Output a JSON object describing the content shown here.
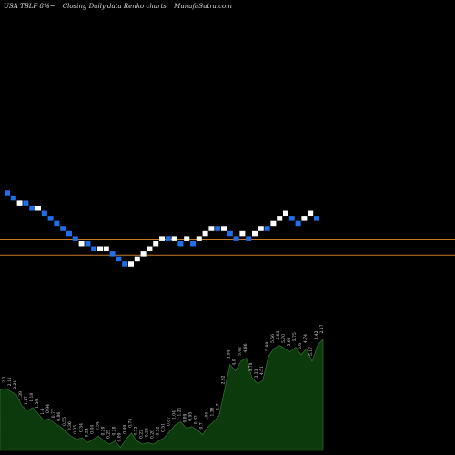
{
  "header": {
    "ticker": "USA TBLF 8%~",
    "chart_kind": "Closing Daily data  Renko  charts",
    "site": "MunafaSutra.com"
  },
  "colors": {
    "up_brick": "#ffffff",
    "down_brick": "#1e6fe8",
    "hline": "#c87a2a",
    "volume_fill": "#0d3a0d",
    "volume_stroke": "#3a7a3a",
    "background": "#000000"
  },
  "chart_data": {
    "type": "renko",
    "hlines": [
      21.35,
      20.75
    ],
    "bricks": [
      {
        "dir": "down",
        "value": 23.2
      },
      {
        "dir": "down",
        "value": 23.0
      },
      {
        "dir": "up",
        "value": 22.8
      },
      {
        "dir": "down",
        "value": 22.8
      },
      {
        "dir": "down",
        "value": 22.6
      },
      {
        "dir": "up",
        "value": 22.6
      },
      {
        "dir": "down",
        "value": 22.4
      },
      {
        "dir": "down",
        "value": 22.2
      },
      {
        "dir": "down",
        "value": 22.0
      },
      {
        "dir": "down",
        "value": 21.8
      },
      {
        "dir": "down",
        "value": 21.6
      },
      {
        "dir": "down",
        "value": 21.4
      },
      {
        "dir": "up",
        "value": 21.2
      },
      {
        "dir": "down",
        "value": 21.2
      },
      {
        "dir": "down",
        "value": 21.0
      },
      {
        "dir": "up",
        "value": 21.0
      },
      {
        "dir": "up",
        "value": 21.0
      },
      {
        "dir": "down",
        "value": 20.8
      },
      {
        "dir": "down",
        "value": 20.6
      },
      {
        "dir": "down",
        "value": 20.4
      },
      {
        "dir": "up",
        "value": 20.4
      },
      {
        "dir": "up",
        "value": 20.6
      },
      {
        "dir": "up",
        "value": 20.8
      },
      {
        "dir": "up",
        "value": 21.0
      },
      {
        "dir": "up",
        "value": 21.2
      },
      {
        "dir": "up",
        "value": 21.4
      },
      {
        "dir": "down",
        "value": 21.4
      },
      {
        "dir": "up",
        "value": 21.4
      },
      {
        "dir": "down",
        "value": 21.2
      },
      {
        "dir": "up",
        "value": 21.4
      },
      {
        "dir": "down",
        "value": 21.2
      },
      {
        "dir": "up",
        "value": 21.4
      },
      {
        "dir": "up",
        "value": 21.6
      },
      {
        "dir": "up",
        "value": 21.8
      },
      {
        "dir": "down",
        "value": 21.8
      },
      {
        "dir": "up",
        "value": 21.8
      },
      {
        "dir": "down",
        "value": 21.6
      },
      {
        "dir": "down",
        "value": 21.4
      },
      {
        "dir": "up",
        "value": 21.6
      },
      {
        "dir": "down",
        "value": 21.4
      },
      {
        "dir": "up",
        "value": 21.6
      },
      {
        "dir": "up",
        "value": 21.8
      },
      {
        "dir": "down",
        "value": 21.8
      },
      {
        "dir": "up",
        "value": 22.0
      },
      {
        "dir": "up",
        "value": 22.2
      },
      {
        "dir": "up",
        "value": 22.4
      },
      {
        "dir": "down",
        "value": 22.2
      },
      {
        "dir": "down",
        "value": 22.0
      },
      {
        "dir": "up",
        "value": 22.2
      },
      {
        "dir": "up",
        "value": 22.4
      },
      {
        "dir": "down",
        "value": 22.2
      }
    ],
    "volume": [
      {
        "v": 1.9,
        "label": "2.18"
      },
      {
        "v": 1.95,
        "label": "2.3"
      },
      {
        "v": 1.85,
        "label": "2.11"
      },
      {
        "v": 1.75,
        "label": "2.21"
      },
      {
        "v": 1.4,
        "label": "1.39"
      },
      {
        "v": 1.25,
        "label": "1.17"
      },
      {
        "v": 1.35,
        "label": "1.18"
      },
      {
        "v": 1.15,
        "label": "1.54"
      },
      {
        "v": 0.95,
        "label": "1.4"
      },
      {
        "v": 1.0,
        "label": "0.94"
      },
      {
        "v": 0.85,
        "label": "0.77"
      },
      {
        "v": 0.75,
        "label": "0.86"
      },
      {
        "v": 0.6,
        "label": "0.55"
      },
      {
        "v": 0.45,
        "label": "0.36"
      },
      {
        "v": 0.35,
        "label": "0.35"
      },
      {
        "v": 0.4,
        "label": "0.34"
      },
      {
        "v": 0.25,
        "label": "0.24"
      },
      {
        "v": 0.35,
        "label": "0.44"
      },
      {
        "v": 0.45,
        "label": "0.54"
      },
      {
        "v": 0.3,
        "label": "0.29"
      },
      {
        "v": 0.2,
        "label": "0.25"
      },
      {
        "v": 0.3,
        "label": "0.28"
      },
      {
        "v": 0.1,
        "label": "0.09"
      },
      {
        "v": 0.35,
        "label": "0.49"
      },
      {
        "v": 0.55,
        "label": "0.75"
      },
      {
        "v": 0.3,
        "label": "0.32"
      },
      {
        "v": 0.2,
        "label": "0.22"
      },
      {
        "v": 0.25,
        "label": "0.28"
      },
      {
        "v": 0.2,
        "label": "0.20"
      },
      {
        "v": 0.3,
        "label": "0.32"
      },
      {
        "v": 0.4,
        "label": "0.51"
      },
      {
        "v": 0.6,
        "label": "0.87"
      },
      {
        "v": 0.8,
        "label": "1.04"
      },
      {
        "v": 0.9,
        "label": "1.21"
      },
      {
        "v": 0.7,
        "label": "0.89"
      },
      {
        "v": 0.75,
        "label": "0.95"
      },
      {
        "v": 0.65,
        "label": "0.82"
      },
      {
        "v": 0.5,
        "label": "0.7"
      },
      {
        "v": 0.75,
        "label": "1.00"
      },
      {
        "v": 0.9,
        "label": "1.38"
      },
      {
        "v": 1.1,
        "label": "1.7"
      },
      {
        "v": 1.9,
        "label": "2.92"
      },
      {
        "v": 2.7,
        "label": "3.94"
      },
      {
        "v": 2.5,
        "label": "4.0"
      },
      {
        "v": 2.8,
        "label": "5.42"
      },
      {
        "v": 2.9,
        "label": "4.86"
      },
      {
        "v": 2.3,
        "label": "3.78"
      },
      {
        "v": 2.1,
        "label": "3.33"
      },
      {
        "v": 2.2,
        "label": "4.51"
      },
      {
        "v": 2.95,
        "label": "5.98"
      },
      {
        "v": 3.2,
        "label": "5.56"
      },
      {
        "v": 3.3,
        "label": "5.83"
      },
      {
        "v": 3.2,
        "label": "5.70"
      },
      {
        "v": 3.1,
        "label": "5.63"
      },
      {
        "v": 3.25,
        "label": "5.75"
      },
      {
        "v": 3.0,
        "label": "5.6"
      },
      {
        "v": 3.2,
        "label": "4.74"
      },
      {
        "v": 2.8,
        "label": "5.17"
      },
      {
        "v": 3.3,
        "label": "3.42"
      },
      {
        "v": 3.5,
        "label": "2.17"
      }
    ]
  }
}
